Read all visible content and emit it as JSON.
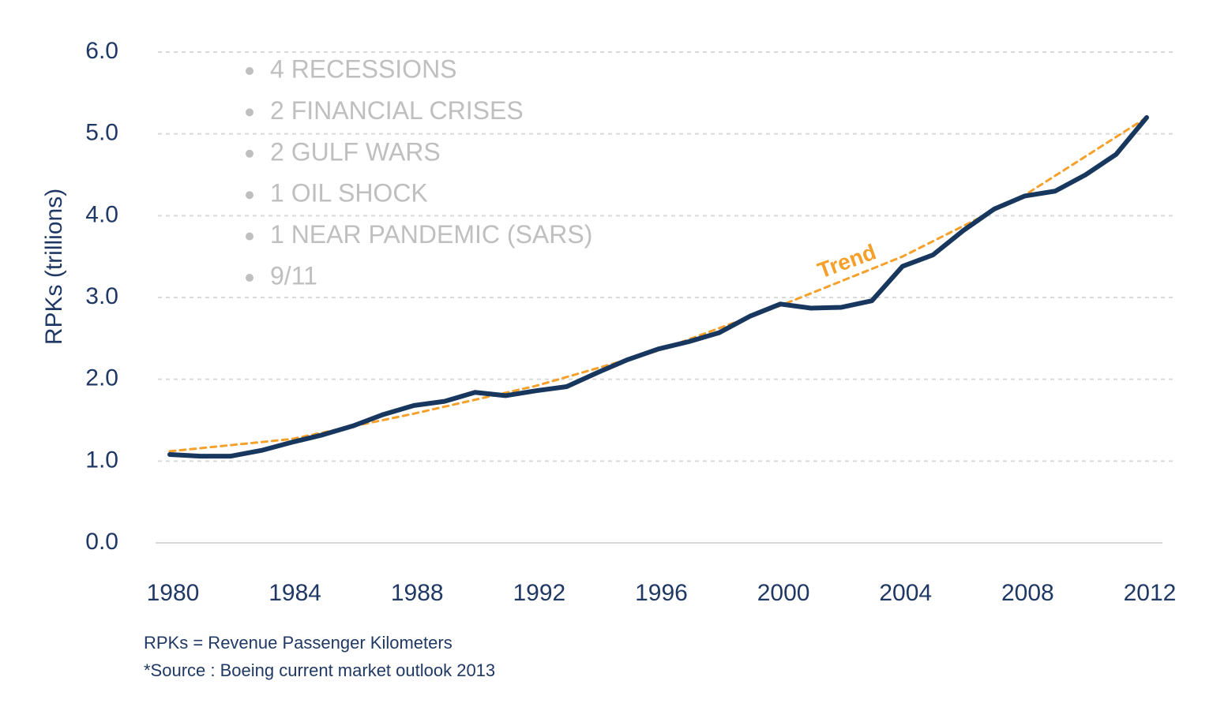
{
  "chart_data": {
    "type": "line",
    "y_label": "RPKs (trillions)",
    "annotations": [
      "4 RECESSIONS",
      "2 FINANCIAL CRISES",
      "2 GULF WARS",
      "1 OIL SHOCK",
      "1 NEAR PANDEMIC (SARS)",
      "9/11"
    ],
    "notes": [
      "RPKs  = Revenue Passenger Kilometers",
      "*Source : Boeing current market outlook 2013"
    ],
    "xlim": [
      1980,
      2012
    ],
    "xticks": [
      1980,
      1984,
      1988,
      1992,
      1996,
      2000,
      2004,
      2008,
      2012
    ],
    "ylim": [
      0,
      6
    ],
    "yticks": [
      {
        "value": 0,
        "label": "0.0"
      },
      {
        "value": 1,
        "label": "1.0"
      },
      {
        "value": 2,
        "label": "2.0"
      },
      {
        "value": 3,
        "label": "3.0"
      },
      {
        "value": 4,
        "label": "4.0"
      },
      {
        "value": 5,
        "label": "5.0"
      },
      {
        "value": 6,
        "label": "6.0"
      }
    ],
    "grid": true,
    "series": [
      {
        "color": "#17375e",
        "dashed": false,
        "x": [
          1980,
          1981,
          1982,
          1983,
          1984,
          1985,
          1986,
          1987,
          1988,
          1989,
          1990,
          1991,
          1992,
          1993,
          1994,
          1995,
          1996,
          1997,
          1998,
          1999,
          2000,
          2001,
          2002,
          2003,
          2004,
          2005,
          2006,
          2007,
          2008,
          2009,
          2010,
          2011,
          2012
        ],
        "values": [
          1.08,
          1.06,
          1.06,
          1.13,
          1.23,
          1.32,
          1.43,
          1.57,
          1.68,
          1.73,
          1.84,
          1.8,
          1.86,
          1.91,
          2.08,
          2.24,
          2.37,
          2.46,
          2.57,
          2.77,
          2.92,
          2.87,
          2.88,
          2.96,
          3.38,
          3.52,
          3.82,
          4.08,
          4.24,
          4.3,
          4.5,
          4.75,
          5.2
        ]
      },
      {
        "name": "Trend",
        "color": "#f5a02a",
        "dashed": true,
        "x": [
          1980,
          1984,
          1988,
          1992,
          1996,
          2000,
          2004,
          2008,
          2012
        ],
        "values": [
          1.12,
          1.27,
          1.58,
          1.92,
          2.35,
          2.9,
          3.5,
          4.25,
          5.2
        ]
      }
    ]
  }
}
